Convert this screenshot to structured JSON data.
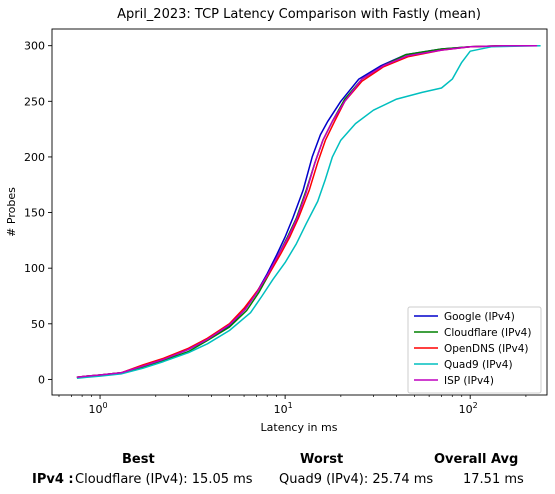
{
  "chart_data": {
    "type": "line",
    "title": "April_2023: TCP Latency Comparison with Fastly (mean)",
    "xlabel": "Latency in ms",
    "ylabel": "# Probes",
    "xscale": "log",
    "xlim": [
      0.55,
      260
    ],
    "ylim": [
      -14,
      315
    ],
    "x_ticks": [
      {
        "value": 1,
        "base": "10",
        "exp": "0"
      },
      {
        "value": 10,
        "base": "10",
        "exp": "1"
      },
      {
        "value": 100,
        "base": "10",
        "exp": "2"
      }
    ],
    "y_ticks": [
      0,
      50,
      100,
      150,
      200,
      250,
      300
    ],
    "grid": false,
    "legend_position": "bottom-right",
    "series": [
      {
        "name": "Google (IPv4)",
        "color": "#0000cc",
        "points": [
          [
            0.75,
            2
          ],
          [
            0.85,
            3
          ],
          [
            1.0,
            4
          ],
          [
            1.3,
            6
          ],
          [
            1.7,
            12
          ],
          [
            2.2,
            18
          ],
          [
            3.0,
            27
          ],
          [
            3.8,
            36
          ],
          [
            5.0,
            48
          ],
          [
            6.0,
            62
          ],
          [
            7.0,
            78
          ],
          [
            8.0,
            95
          ],
          [
            9.0,
            112
          ],
          [
            10.0,
            128
          ],
          [
            11.0,
            145
          ],
          [
            12.5,
            170
          ],
          [
            14.0,
            200
          ],
          [
            15.5,
            220
          ],
          [
            17.0,
            232
          ],
          [
            20.0,
            250
          ],
          [
            25.0,
            270
          ],
          [
            33.0,
            282
          ],
          [
            45.0,
            292
          ],
          [
            70.0,
            297
          ],
          [
            100.0,
            299
          ],
          [
            150.0,
            300
          ],
          [
            230.0,
            300
          ]
        ]
      },
      {
        "name": "Cloudflare (IPv4)",
        "color": "#008000",
        "points": [
          [
            0.75,
            2
          ],
          [
            0.85,
            3
          ],
          [
            1.0,
            4
          ],
          [
            1.3,
            6
          ],
          [
            1.7,
            11
          ],
          [
            2.2,
            17
          ],
          [
            3.0,
            25
          ],
          [
            3.8,
            35
          ],
          [
            5.0,
            47
          ],
          [
            6.2,
            62
          ],
          [
            7.2,
            78
          ],
          [
            8.2,
            95
          ],
          [
            9.2,
            112
          ],
          [
            10.3,
            128
          ],
          [
            11.5,
            145
          ],
          [
            13.0,
            170
          ],
          [
            14.5,
            195
          ],
          [
            16.0,
            215
          ],
          [
            18.0,
            232
          ],
          [
            21.0,
            252
          ],
          [
            26.0,
            270
          ],
          [
            34.0,
            282
          ],
          [
            45.0,
            292
          ],
          [
            70.0,
            297
          ],
          [
            100.0,
            299
          ],
          [
            150.0,
            300
          ],
          [
            230.0,
            300
          ]
        ]
      },
      {
        "name": "OpenDNS (IPv4)",
        "color": "#ff0000",
        "points": [
          [
            0.75,
            2
          ],
          [
            0.85,
            3
          ],
          [
            1.0,
            4
          ],
          [
            1.3,
            6
          ],
          [
            1.7,
            13
          ],
          [
            2.2,
            19
          ],
          [
            3.0,
            28
          ],
          [
            3.8,
            37
          ],
          [
            5.0,
            50
          ],
          [
            6.0,
            64
          ],
          [
            7.1,
            80
          ],
          [
            8.2,
            95
          ],
          [
            9.4,
            112
          ],
          [
            10.6,
            128
          ],
          [
            11.8,
            145
          ],
          [
            13.5,
            170
          ],
          [
            15.0,
            195
          ],
          [
            16.5,
            215
          ],
          [
            18.5,
            232
          ],
          [
            21.0,
            250
          ],
          [
            26.0,
            268
          ],
          [
            34.0,
            281
          ],
          [
            46.0,
            290
          ],
          [
            70.0,
            296
          ],
          [
            100.0,
            299
          ],
          [
            150.0,
            300
          ],
          [
            230.0,
            300
          ]
        ]
      },
      {
        "name": "Quad9 (IPv4)",
        "color": "#00bfbf",
        "points": [
          [
            0.75,
            1
          ],
          [
            0.85,
            2
          ],
          [
            1.0,
            3
          ],
          [
            1.3,
            5
          ],
          [
            1.7,
            10
          ],
          [
            2.2,
            16
          ],
          [
            3.0,
            24
          ],
          [
            3.8,
            32
          ],
          [
            5.0,
            44
          ],
          [
            6.5,
            60
          ],
          [
            7.5,
            75
          ],
          [
            8.6,
            90
          ],
          [
            10.0,
            105
          ],
          [
            11.5,
            122
          ],
          [
            13.0,
            140
          ],
          [
            15.0,
            160
          ],
          [
            16.5,
            180
          ],
          [
            18.0,
            200
          ],
          [
            20.0,
            215
          ],
          [
            24.0,
            230
          ],
          [
            30.0,
            242
          ],
          [
            40.0,
            252
          ],
          [
            55.0,
            258
          ],
          [
            70.0,
            262
          ],
          [
            80.0,
            270
          ],
          [
            90.0,
            285
          ],
          [
            100.0,
            295
          ],
          [
            130.0,
            299
          ],
          [
            240.0,
            300
          ]
        ]
      },
      {
        "name": "ISP (IPv4)",
        "color": "#bf00bf",
        "points": [
          [
            0.75,
            2
          ],
          [
            0.85,
            3
          ],
          [
            1.0,
            4
          ],
          [
            1.3,
            6
          ],
          [
            1.7,
            12
          ],
          [
            2.2,
            18
          ],
          [
            3.0,
            27
          ],
          [
            3.8,
            36
          ],
          [
            5.0,
            49
          ],
          [
            6.1,
            63
          ],
          [
            7.1,
            79
          ],
          [
            8.1,
            95
          ],
          [
            9.2,
            112
          ],
          [
            10.4,
            128
          ],
          [
            11.6,
            145
          ],
          [
            13.0,
            168
          ],
          [
            14.5,
            195
          ],
          [
            16.0,
            215
          ],
          [
            18.0,
            232
          ],
          [
            21.0,
            250
          ],
          [
            26.0,
            270
          ],
          [
            34.0,
            282
          ],
          [
            46.0,
            291
          ],
          [
            70.0,
            296
          ],
          [
            100.0,
            299
          ],
          [
            150.0,
            300
          ],
          [
            230.0,
            300
          ]
        ]
      }
    ]
  },
  "summary": {
    "best_header": "Best",
    "worst_header": "Worst",
    "avg_header": "Overall Avg",
    "row_label": "IPv4 :",
    "best_value": "Cloudflare (IPv4): 15.05 ms",
    "worst_value": "Quad9 (IPv4): 25.74 ms",
    "avg_value": "17.51 ms"
  }
}
